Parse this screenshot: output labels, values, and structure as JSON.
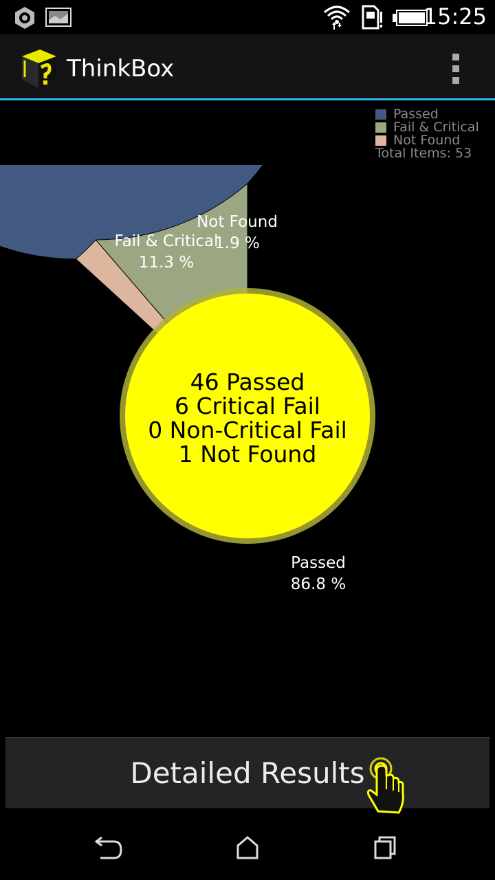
{
  "status_bar": {
    "time": "15:25",
    "icons": [
      "settings-notification-icon",
      "image-notification-icon",
      "wifi-icon",
      "sim-signal-icon",
      "battery-icon"
    ]
  },
  "app": {
    "title": "ThinkBox",
    "logo_icon": "thinkbox-cube-logo",
    "menu_icon": "overflow-menu-icon"
  },
  "legend": {
    "items": [
      {
        "label": "Passed",
        "color": "#425a82"
      },
      {
        "label": "Fail & Critical",
        "color": "#9ba783"
      },
      {
        "label": "Not Found",
        "color": "#dcb69f"
      }
    ],
    "total": "Total Items: 53"
  },
  "chart_data": {
    "type": "pie",
    "series": [
      {
        "name": "Passed",
        "value": 46,
        "percent_label": "86.8 %",
        "color": "#425a82"
      },
      {
        "name": "Fail & Critical",
        "value": 6,
        "percent_label": "11.3 %",
        "color": "#9ba783"
      },
      {
        "name": "Not Found",
        "value": 1,
        "percent_label": "1.9 %",
        "color": "#dcb69f"
      }
    ],
    "center_lines": [
      "46 Passed",
      "6 Critical Fail",
      "0 Non-Critical Fail",
      "1 Not Found"
    ],
    "center_color": "#ffff00"
  },
  "actions": {
    "detailed_results": "Detailed Results",
    "hand_icon": "tap-hand-icon"
  },
  "nav": {
    "back_icon": "back-icon",
    "home_icon": "home-icon",
    "recents_icon": "recents-icon"
  }
}
